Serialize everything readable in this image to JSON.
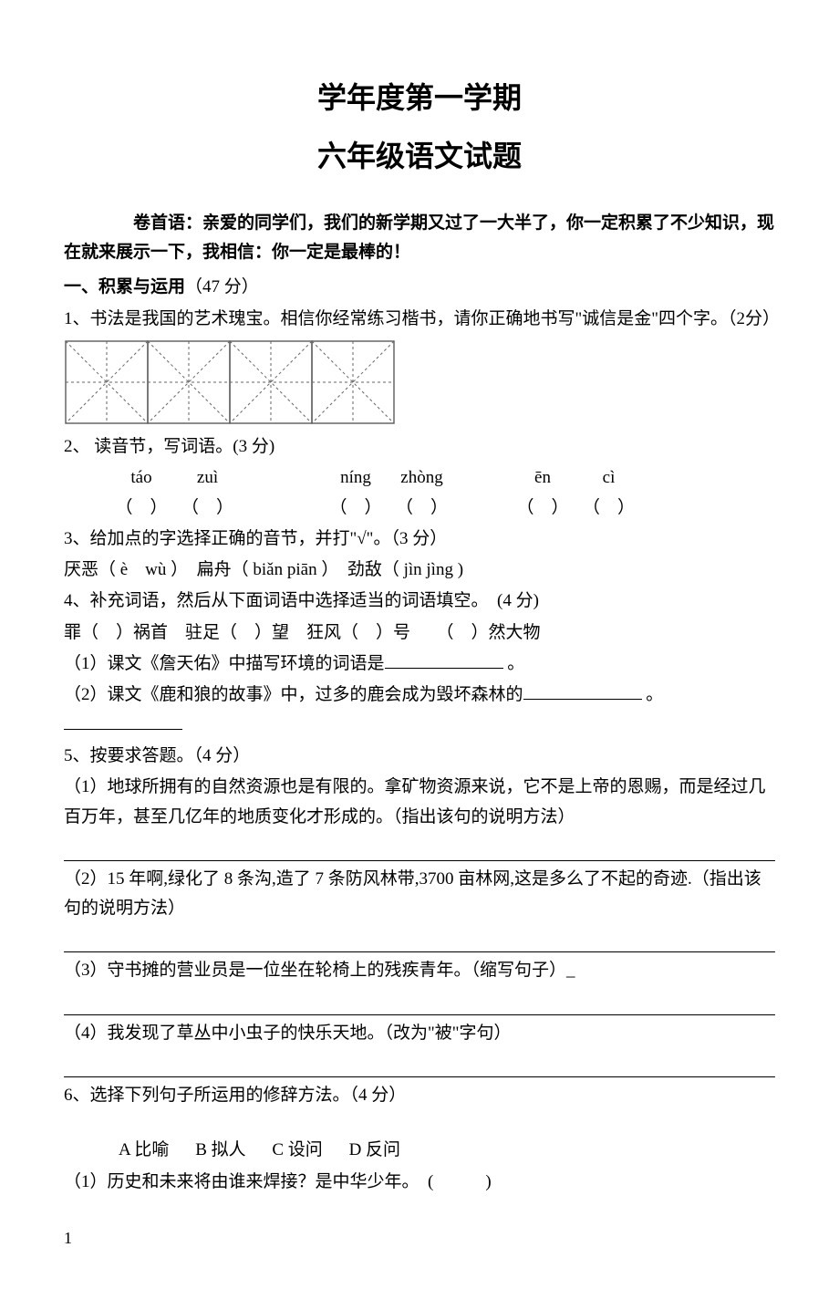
{
  "title": {
    "line1": "学年度第一学期",
    "line2": "六年级语文试题"
  },
  "preface": {
    "line1": "卷首语：亲爱的同学们，我们的新学期又过了一大半了，你一定积累了不少知识，现",
    "line2": "在就来展示一下，我相信：你一定是最棒的！"
  },
  "section1": {
    "head": "一、积累与运用",
    "points": "（47 分）"
  },
  "q1": "1、书法是我国的艺术瑰宝。相信你经常练习楷书，请你正确地书写\"诚信是金\"四个字。（2分）",
  "practice_grid": {
    "cells": 4,
    "cell_size": 90,
    "stroke": "#666666",
    "dot_stroke": "#666666"
  },
  "q2": {
    "head": "2、 读音节，写词语。(3 分)",
    "pinyin": [
      "táo",
      "zuì",
      "níng",
      "zhòng",
      "ēn",
      "cì"
    ],
    "paren": "（　）"
  },
  "q3": {
    "head": "3、给加点的字选择正确的音节，并打\"√\"。（3 分）",
    "body": "厌恶（ è　wù ）　扁舟（ biǎn piān ）　劲敌（ jìn jìng )"
  },
  "q4": {
    "head": "4、补充词语，然后从下面词语中选择适当的词语填空。　(4 分)",
    "line1": " 罪（　）祸首　驻足（　）望　狂风（　）号　　（　）然大物",
    "line2a": "（1）课文《詹天佑》中描写环境的词语是",
    "line2b": " 。",
    "line3a": "（2）课文《鹿和狼的故事》中，过多的鹿会成为毁坏森林的",
    "line3b": " 。"
  },
  "q5": {
    "head": "5、按要求答题。（4 分）",
    "p1": "（1）地球所拥有的自然资源也是有限的。拿矿物资源来说，它不是上帝的恩赐，而是经过几百万年，甚至几亿年的地质变化才形成的。（指出该句的说明方法）",
    "p2": "（2）15 年啊,绿化了 8 条沟,造了 7 条防风林带,3700 亩林网,这是多么了不起的奇迹.（指出该句的说明方法）",
    "p3": "（3）守书摊的营业员是一位坐在轮椅上的残疾青年。（缩写句子）_",
    "p4": "（4）我发现了草丛中小虫子的快乐天地。（改为\"被\"字句）"
  },
  "q6": {
    "head": "6、选择下列句子所运用的修辞方法。（4 分）",
    "choices": {
      "A": "A 比喻",
      "B": "B 拟人",
      "C": "C 设问",
      "D": "D 反问"
    },
    "p1": "（1）历史和未来将由谁来焊接？是中华少年。　(　　　)"
  },
  "page_number": "1"
}
